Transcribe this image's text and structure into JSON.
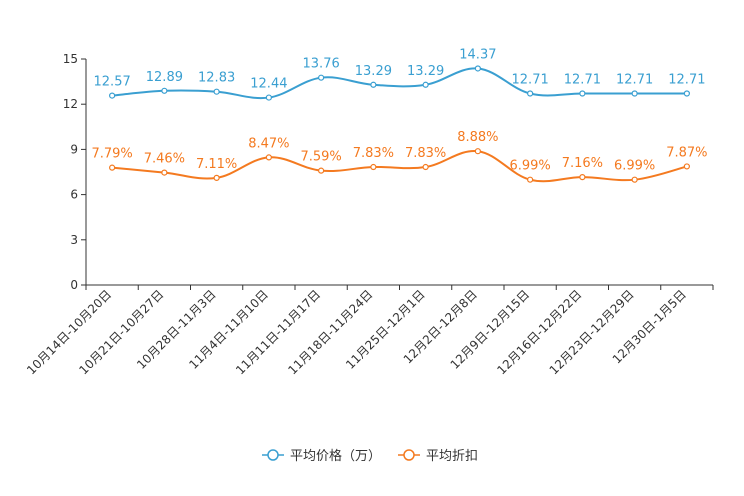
{
  "chart_data": {
    "type": "line",
    "title": "",
    "xlabel": "",
    "ylabel": "",
    "ylim": [
      0,
      15
    ],
    "yticks": [
      0,
      3,
      6,
      9,
      12,
      15
    ],
    "categories": [
      "10月14日-10月20日",
      "10月21日-10月27日",
      "10月28日-11月3日",
      "11月4日-11月10日",
      "11月11日-11月17日",
      "11月18日-11月24日",
      "11月25日-12月1日",
      "12月2日-12月8日",
      "12月9日-12月15日",
      "12月16日-12月22日",
      "12月23日-12月29日",
      "12月30日-1月5日"
    ],
    "series": [
      {
        "name": "平均价格（万）",
        "color": "#3a9fd1",
        "values": [
          12.57,
          12.89,
          12.83,
          12.44,
          13.76,
          13.29,
          13.29,
          14.37,
          12.71,
          12.71,
          12.71,
          12.71
        ],
        "labels": [
          "12.57",
          "12.89",
          "12.83",
          "12.44",
          "13.76",
          "13.29",
          "13.29",
          "14.37",
          "12.71",
          "12.71",
          "12.71",
          "12.71"
        ]
      },
      {
        "name": "平均折扣",
        "color": "#f47a20",
        "values": [
          7.79,
          7.46,
          7.11,
          8.47,
          7.59,
          7.83,
          7.83,
          8.88,
          6.99,
          7.16,
          6.99,
          7.87
        ],
        "labels": [
          "7.79%",
          "7.46%",
          "7.11%",
          "8.47%",
          "7.59%",
          "7.83%",
          "7.83%",
          "8.88%",
          "6.99%",
          "7.16%",
          "6.99%",
          "7.87%"
        ]
      }
    ],
    "legend_position": "bottom-center",
    "grid": false
  }
}
